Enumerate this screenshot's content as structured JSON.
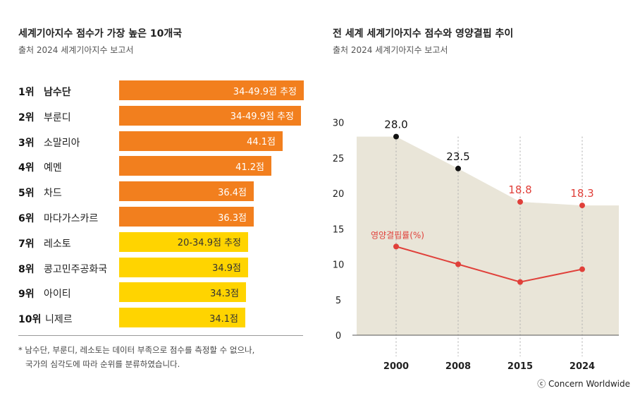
{
  "left": {
    "title": "세계기아지수 점수가 가장 높은 10개국",
    "source": "출처  2024 세계기아지수 보고서",
    "rows": [
      {
        "rank": "1위",
        "country": "남수단",
        "label": "34-49.9점 추정",
        "value": 49.9
      },
      {
        "rank": "2위",
        "country": "부룬디",
        "label": "34-49.9점 추정",
        "value": 49.1
      },
      {
        "rank": "3위",
        "country": "소말리아",
        "label": "44.1점",
        "value": 44.1
      },
      {
        "rank": "4위",
        "country": "예멘",
        "label": "41.2점",
        "value": 41.2
      },
      {
        "rank": "5위",
        "country": "차드",
        "label": "36.4점",
        "value": 36.4
      },
      {
        "rank": "6위",
        "country": "마다가스카르",
        "label": "36.3점",
        "value": 36.3
      },
      {
        "rank": "7위",
        "country": "레소토",
        "label": "20-34.9점 추정",
        "value": 34.9
      },
      {
        "rank": "8위",
        "country": "콩고민주공화국",
        "label": "34.9점",
        "value": 34.9
      },
      {
        "rank": "9위",
        "country": "아이티",
        "label": "34.3점",
        "value": 34.3
      },
      {
        "rank": "10위",
        "country": "니제르",
        "label": "34.1점",
        "value": 34.1
      }
    ],
    "note_line1": "* 남수단, 부룬디, 레소토는 데이터 부족으로 점수를 측정할 수 없으나,",
    "note_line2": "국가의 심각도에 따라 순위를 분류하였습니다."
  },
  "right": {
    "title": "전 세계 세계기아지수 점수와 영양결핍 추이",
    "source": "출처  2024 세계기아지수 보고서"
  },
  "colors": {
    "orange": "#f27f1e",
    "yellow": "#ffd400",
    "area": "#e9e5d8",
    "undernourishment": "#e0403a",
    "ghi_point": "#111111"
  },
  "copyright": "ⓒ Concern Worldwide",
  "chart_data": [
    {
      "type": "bar",
      "title": "세계기아지수 점수가 가장 높은 10개국",
      "categories": [
        "남수단",
        "부룬디",
        "소말리아",
        "예멘",
        "차드",
        "마다가스카르",
        "레소토",
        "콩고민주공화국",
        "아이티",
        "니제르"
      ],
      "values": [
        49.9,
        49.1,
        44.1,
        41.2,
        36.4,
        36.3,
        34.9,
        34.9,
        34.3,
        34.1
      ],
      "data_labels": [
        "34-49.9점 추정",
        "34-49.9점 추정",
        "44.1점",
        "41.2점",
        "36.4점",
        "36.3점",
        "20-34.9점 추정",
        "34.9점",
        "34.3점",
        "34.1점"
      ],
      "orientation": "horizontal"
    },
    {
      "type": "area",
      "title": "전 세계 세계기아지수 점수와 영양결핍 추이",
      "x": [
        "2000",
        "2008",
        "2015",
        "2024"
      ],
      "ylim": [
        0,
        30
      ],
      "yticks": [
        "0",
        "5",
        "10",
        "15",
        "20",
        "25",
        "30"
      ],
      "grid": false,
      "series": [
        {
          "values": [
            28.0,
            23.5,
            18.8,
            18.3
          ],
          "labels": [
            "28.0",
            "23.5",
            "18.8",
            "18.3"
          ]
        },
        {
          "name": "영양결핍률(%)",
          "values": [
            12.5,
            10.0,
            7.5,
            9.3
          ]
        }
      ]
    }
  ]
}
